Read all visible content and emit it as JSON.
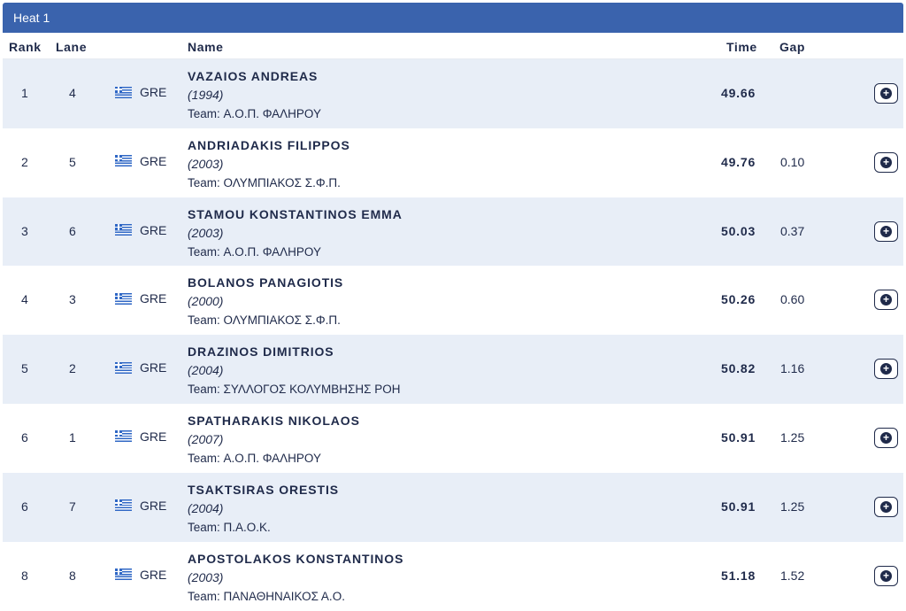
{
  "heat": {
    "title": "Heat 1"
  },
  "columns": {
    "rank": "Rank",
    "lane": "Lane",
    "name": "Name",
    "time": "Time",
    "gap": "Gap"
  },
  "colors": {
    "header_bg": "#3a63ad",
    "row_shaded": "#e8eef7",
    "text": "#1f2a4a"
  },
  "icons": {
    "flag": "greece-flag-icon",
    "expand": "plus-circle-icon"
  },
  "results": [
    {
      "rank": "1",
      "lane": "4",
      "nation": "GRE",
      "name": "VAZAIOS ANDREAS",
      "year": "(1994)",
      "team": "Team: Α.Ο.Π. ΦΑΛΗΡΟΥ",
      "time": "49.66",
      "gap": ""
    },
    {
      "rank": "2",
      "lane": "5",
      "nation": "GRE",
      "name": "ANDRIADAKIS FILIPPOS",
      "year": "(2003)",
      "team": "Team: ΟΛΥΜΠΙΑΚΟΣ Σ.Φ.Π.",
      "time": "49.76",
      "gap": "0.10"
    },
    {
      "rank": "3",
      "lane": "6",
      "nation": "GRE",
      "name": "STAMOU KONSTANTINOS EMMA",
      "year": "(2003)",
      "team": "Team: Α.Ο.Π. ΦΑΛΗΡΟΥ",
      "time": "50.03",
      "gap": "0.37"
    },
    {
      "rank": "4",
      "lane": "3",
      "nation": "GRE",
      "name": "BOLANOS PANAGIOTIS",
      "year": "(2000)",
      "team": "Team: ΟΛΥΜΠΙΑΚΟΣ Σ.Φ.Π.",
      "time": "50.26",
      "gap": "0.60"
    },
    {
      "rank": "5",
      "lane": "2",
      "nation": "GRE",
      "name": "DRAZINOS DIMITRIOS",
      "year": "(2004)",
      "team": "Team: ΣΥΛΛΟΓΟΣ ΚΟΛΥΜΒΗΣΗΣ ΡΟΗ",
      "time": "50.82",
      "gap": "1.16"
    },
    {
      "rank": "6",
      "lane": "1",
      "nation": "GRE",
      "name": "SPATHARAKIS NIKOLAOS",
      "year": "(2007)",
      "team": "Team: Α.Ο.Π. ΦΑΛΗΡΟΥ",
      "time": "50.91",
      "gap": "1.25"
    },
    {
      "rank": "6",
      "lane": "7",
      "nation": "GRE",
      "name": "TSAKTSIRAS ORESTIS",
      "year": "(2004)",
      "team": "Team: Π.Α.Ο.Κ.",
      "time": "50.91",
      "gap": "1.25"
    },
    {
      "rank": "8",
      "lane": "8",
      "nation": "GRE",
      "name": "APOSTOLAKOS KONSTANTINOS",
      "year": "(2003)",
      "team": "Team: ΠΑΝΑΘΗΝΑΙΚΟΣ Α.Ο.",
      "time": "51.18",
      "gap": "1.52"
    }
  ]
}
